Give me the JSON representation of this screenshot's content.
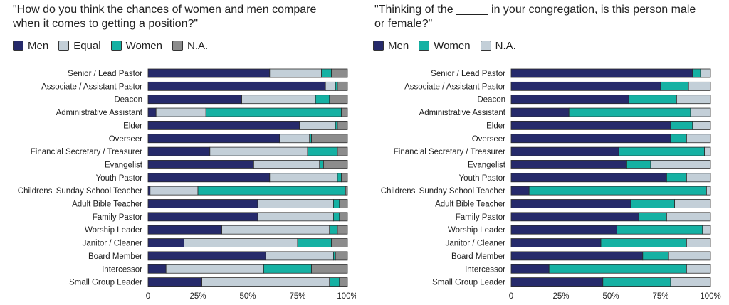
{
  "chart_data": [
    {
      "type": "bar",
      "stacked": true,
      "orientation": "horizontal",
      "title": "\"How do you think the chances of women and men compare\nwhen it comes to getting a position?\"",
      "categories": [
        "Senior / Lead Pastor",
        "Associate / Assistant Pastor",
        "Deacon",
        "Administrative Assistant",
        "Elder",
        "Overseer",
        "Financial Secretary / Treasurer",
        "Evangelist",
        "Youth Pastor",
        "Childrens' Sunday School Teacher",
        "Adult Bible Teacher",
        "Family Pastor",
        "Worship Leader",
        "Janitor / Cleaner",
        "Board Member",
        "Intercessor",
        "Small Group Leader"
      ],
      "series": [
        {
          "name": "Men",
          "color": "#262a6b",
          "values": [
            61,
            89,
            47,
            4,
            76,
            66,
            31,
            53,
            61,
            1,
            55,
            55,
            37,
            18,
            59,
            9,
            27
          ]
        },
        {
          "name": "Equal",
          "color": "#c3cfd8",
          "values": [
            26,
            5,
            37,
            25,
            18,
            15,
            49,
            33,
            34,
            24,
            38,
            38,
            54,
            57,
            34,
            49,
            64
          ]
        },
        {
          "name": "Women",
          "color": "#15b1a3",
          "values": [
            5,
            1,
            7,
            68,
            1,
            1,
            15,
            2,
            2,
            74,
            3,
            3,
            4,
            17,
            1,
            24,
            5
          ]
        },
        {
          "name": "N.A.",
          "color": "#8c8c8c",
          "values": [
            8,
            5,
            9,
            3,
            5,
            18,
            5,
            12,
            3,
            1,
            4,
            4,
            5,
            8,
            6,
            18,
            4
          ]
        }
      ],
      "xlim": [
        0,
        100
      ],
      "xticks": [
        "0",
        "25%",
        "50%",
        "75%",
        "100%"
      ],
      "legend": "top-left",
      "grid": false
    },
    {
      "type": "bar",
      "stacked": true,
      "orientation": "horizontal",
      "title": "\"Thinking of the _____ in your congregation, is this person male\nor female?\"",
      "categories": [
        "Senior / Lead Pastor",
        "Associate / Assistant Pastor",
        "Deacon",
        "Administrative Assistant",
        "Elder",
        "Overseer",
        "Financial Secretary / Treasurer",
        "Evangelist",
        "Youth Pastor",
        "Childrens' Sunday School Teacher",
        "Adult Bible Teacher",
        "Family Pastor",
        "Worship Leader",
        "Janitor / Cleaner",
        "Board Member",
        "Intercessor",
        "Small Group Leader"
      ],
      "series": [
        {
          "name": "Men",
          "color": "#262a6b",
          "values": [
            91,
            75,
            59,
            29,
            80,
            80,
            54,
            58,
            78,
            9,
            60,
            64,
            53,
            45,
            66,
            19,
            46
          ]
        },
        {
          "name": "Women",
          "color": "#15b1a3",
          "values": [
            4,
            14,
            24,
            61,
            11,
            8,
            43,
            12,
            10,
            89,
            22,
            14,
            43,
            43,
            13,
            69,
            34
          ]
        },
        {
          "name": "N.A.",
          "color": "#c3cfd8",
          "values": [
            5,
            11,
            17,
            10,
            9,
            12,
            3,
            30,
            12,
            2,
            18,
            22,
            4,
            12,
            21,
            12,
            20
          ]
        }
      ],
      "xlim": [
        0,
        100
      ],
      "xticks": [
        "0",
        "25%",
        "50%",
        "75%",
        "100%"
      ],
      "legend": "top-left",
      "grid": false
    }
  ]
}
